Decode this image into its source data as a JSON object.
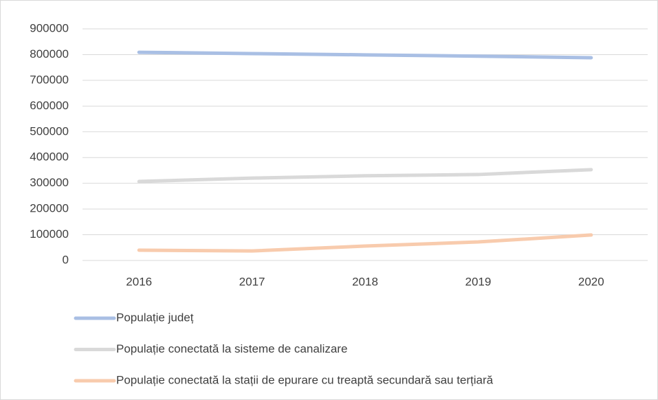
{
  "chart_data": {
    "type": "line",
    "categories": [
      "2016",
      "2017",
      "2018",
      "2019",
      "2020"
    ],
    "series": [
      {
        "name": "Populație județ",
        "color": "#a9bfe4",
        "values": [
          809000,
          804000,
          799000,
          794000,
          788000
        ]
      },
      {
        "name": "Populație conectată la sisteme de canalizare",
        "color": "#d9d9d9",
        "values": [
          307000,
          320000,
          329000,
          334000,
          353000
        ]
      },
      {
        "name": "Populație conectată la stații de epurare cu treaptă secundară sau terțiară",
        "color": "#f8cbad",
        "values": [
          40000,
          37000,
          56000,
          72000,
          99000
        ]
      }
    ],
    "ylim": [
      0,
      900000
    ],
    "yticks": [
      0,
      100000,
      200000,
      300000,
      400000,
      500000,
      600000,
      700000,
      800000,
      900000
    ],
    "grid": true,
    "legend": "bottom"
  }
}
